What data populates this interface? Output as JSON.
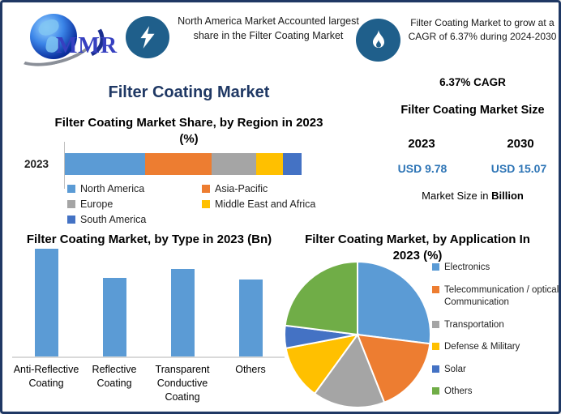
{
  "brand": {
    "logo_text": "MMR"
  },
  "header": {
    "callout1": {
      "icon": "lightning-icon",
      "text": "North America Market Accounted largest share in the Filter Coating Market"
    },
    "callout2": {
      "icon": "flame-icon",
      "text": "Filter Coating Market to grow at a CAGR of 6.37% during 2024-2030"
    },
    "icon_bg_color": "#1F5F8B"
  },
  "main_title": "Filter Coating Market",
  "colors": {
    "title_navy": "#1F3864",
    "value_blue": "#2E75B6",
    "axis_gray": "#D9D9D9"
  },
  "right_panel": {
    "cagr": "6.37% CAGR",
    "size_title": "Filter Coating Market Size",
    "year_start": "2023",
    "year_end": "2030",
    "value_start": "USD 9.78",
    "value_end": "USD 15.07",
    "footnote_prefix": "Market Size in ",
    "footnote_bold": "Billion"
  },
  "chart_data": [
    {
      "type": "bar",
      "variant": "horizontal-stacked",
      "title": "Filter Coating Market Share, by Region in 2023 (%)",
      "categories": [
        "2023"
      ],
      "series": [
        {
          "name": "North America",
          "values": [
            34
          ],
          "color": "#5B9BD5"
        },
        {
          "name": "Asia-Pacific",
          "values": [
            28
          ],
          "color": "#ED7D31"
        },
        {
          "name": "Europe",
          "values": [
            19
          ],
          "color": "#A5A5A5"
        },
        {
          "name": "Middle East and Africa",
          "values": [
            11
          ],
          "color": "#FFC000"
        },
        {
          "name": "South America",
          "values": [
            8
          ],
          "color": "#4472C4"
        }
      ],
      "xlim": [
        0,
        100
      ],
      "grid": false,
      "legend_position": "bottom",
      "values_estimated_from_pixels": true
    },
    {
      "type": "bar",
      "title": "Filter Coating Market, by Type in 2023 (Bn)",
      "categories": [
        "Anti-Reflective Coating",
        "Reflective Coating",
        "Transparent Conductive Coating",
        "Others"
      ],
      "values": [
        3.0,
        2.2,
        2.45,
        2.15
      ],
      "bar_color": "#5B9BD5",
      "ylim": [
        0,
        3.1
      ],
      "grid": false,
      "legend_position": "none",
      "values_estimated_from_pixels": true
    },
    {
      "type": "pie",
      "title": "Filter Coating Market, by Application In 2023 (%)",
      "start_angle_deg": 0,
      "direction": "clockwise",
      "legend_position": "right",
      "slices": [
        {
          "label": "Electronics",
          "value": 27,
          "color": "#5B9BD5"
        },
        {
          "label": "Telecommunication / optical Communication",
          "value": 17,
          "color": "#ED7D31"
        },
        {
          "label": "Transportation",
          "value": 16,
          "color": "#A5A5A5"
        },
        {
          "label": "Defense & Military",
          "value": 12,
          "color": "#FFC000"
        },
        {
          "label": "Solar",
          "value": 5,
          "color": "#4472C4"
        },
        {
          "label": "Others",
          "value": 23,
          "color": "#70AD47"
        }
      ],
      "values_estimated_from_pixels": true
    }
  ]
}
